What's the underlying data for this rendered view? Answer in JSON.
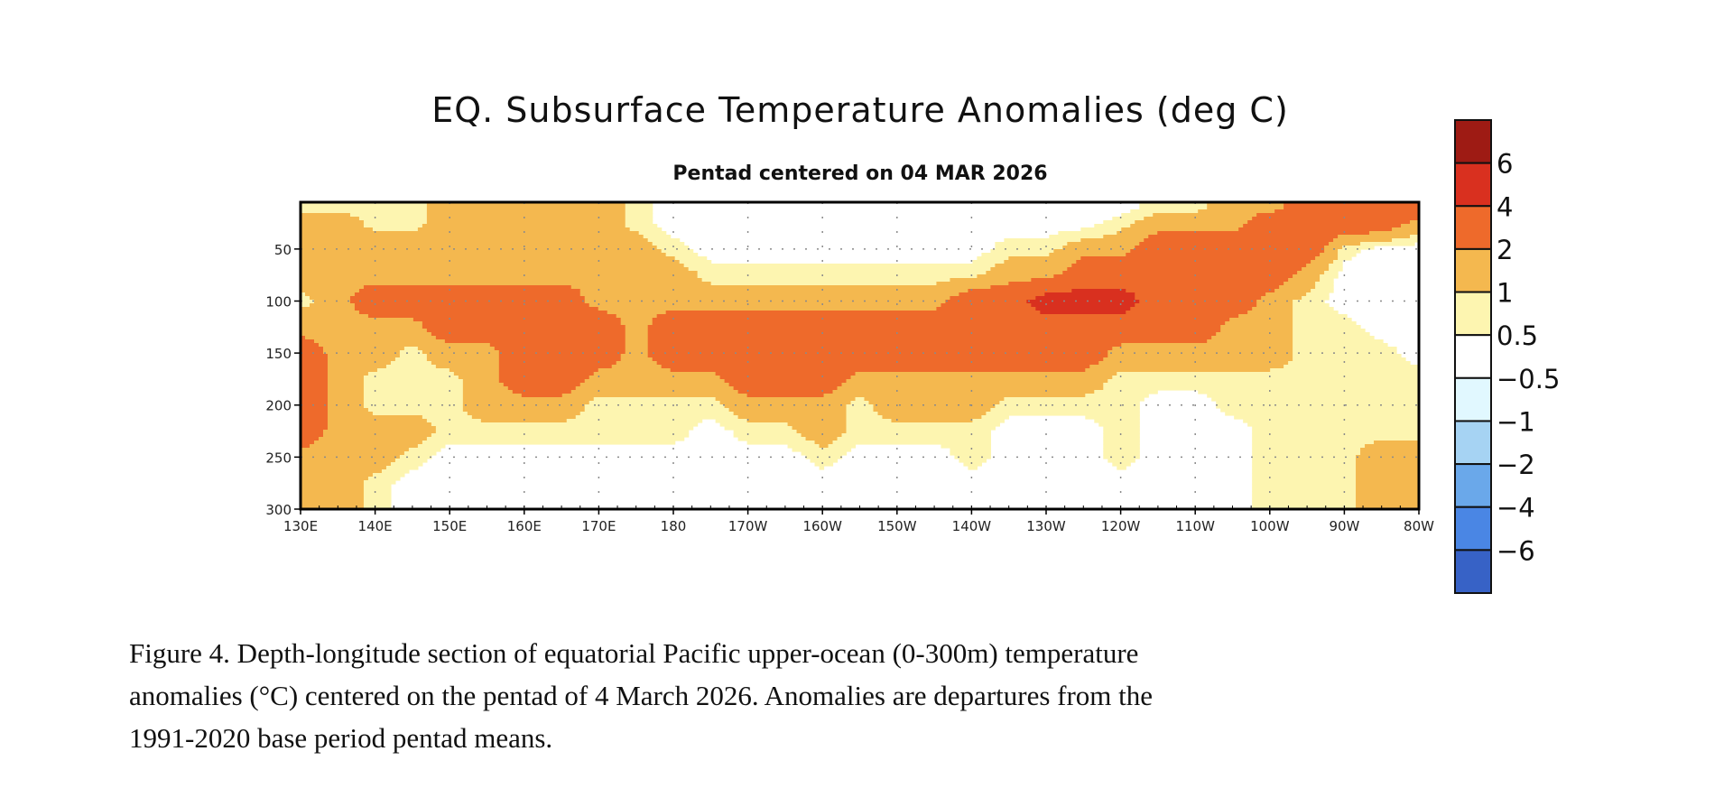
{
  "chart_data": {
    "type": "heatmap",
    "title": "EQ. Subsurface Temperature Anomalies (deg C)",
    "subtitle": "Pentad centered on 04 MAR 2026",
    "xlabel": "",
    "ylabel": "",
    "xlim": [
      130,
      280
    ],
    "ylim": [
      5,
      300
    ],
    "y_reversed": true,
    "grid": true,
    "x_ticks": [
      130,
      140,
      150,
      160,
      170,
      180,
      190,
      200,
      210,
      220,
      230,
      240,
      250,
      260,
      270,
      280
    ],
    "x_tick_labels": [
      "130E",
      "140E",
      "150E",
      "160E",
      "170E",
      "180",
      "170W",
      "160W",
      "150W",
      "140W",
      "130W",
      "120W",
      "110W",
      "100W",
      "90W",
      "80W"
    ],
    "y_ticks": [
      50,
      100,
      150,
      200,
      250,
      300
    ],
    "y_tick_labels": [
      "50",
      "100",
      "150",
      "200",
      "250",
      "300"
    ],
    "colorbar": {
      "levels": [
        6,
        4,
        2,
        1,
        0.5,
        -0.5,
        -1,
        -2,
        -4,
        -6
      ],
      "labels": [
        "6",
        "4",
        "2",
        "1",
        "0.5",
        "−0.5",
        "−1",
        "−2",
        "−4",
        "−6"
      ],
      "colors": [
        "#9e1b14",
        "#d9301f",
        "#ee6a2b",
        "#f4b84f",
        "#fdf5b0",
        "#ffffff",
        "#e1f8ff",
        "#a6d3f3",
        "#6aa8ea",
        "#4a86e4",
        "#3762c6"
      ]
    },
    "lon": [
      130,
      135,
      140,
      145,
      150,
      155,
      160,
      165,
      170,
      175,
      180,
      185,
      190,
      195,
      200,
      205,
      210,
      215,
      220,
      225,
      230,
      235,
      240,
      245,
      250,
      255,
      260,
      265,
      270,
      275,
      280
    ],
    "depth": [
      10,
      25,
      50,
      75,
      100,
      125,
      150,
      175,
      200,
      225,
      250,
      275,
      300
    ],
    "values": [
      [
        0.75,
        1.5,
        1.5,
        1.5,
        0.75,
        1.5,
        3,
        3,
        3,
        3,
        1.5,
        1.5,
        1.5
      ],
      [
        0.75,
        1.5,
        1.5,
        1.5,
        1.5,
        1.5,
        1.5,
        1.5,
        1.5,
        1.5,
        1.5,
        1.5,
        1.5
      ],
      [
        0.75,
        0.75,
        1.5,
        1.5,
        3,
        1.5,
        1.5,
        0.75,
        0.75,
        1.5,
        1.5,
        0.75,
        0.75
      ],
      [
        0.75,
        0.75,
        1.5,
        1.5,
        3,
        1.5,
        0.75,
        0.75,
        0.75,
        1.5,
        0.75,
        0.2,
        0.2
      ],
      [
        1.5,
        1.5,
        1.5,
        1.5,
        3,
        3,
        1.5,
        0.75,
        0.75,
        0.75,
        0.2,
        0.2,
        0.2
      ],
      [
        1.5,
        1.5,
        1.5,
        1.5,
        3,
        3,
        1.5,
        1.5,
        1.5,
        0.75,
        0.2,
        0.2,
        0.2
      ],
      [
        1.5,
        1.5,
        1.5,
        1.5,
        3,
        3,
        3,
        3,
        1.5,
        0.75,
        0.2,
        0.2,
        0.2
      ],
      [
        1.5,
        1.5,
        1.5,
        1.5,
        3,
        3,
        3,
        3,
        1.5,
        0.75,
        0.2,
        0.2,
        0.2
      ],
      [
        1.5,
        1.5,
        1.5,
        1.5,
        1.5,
        3,
        3,
        1.5,
        0.75,
        0.75,
        0.2,
        0.2,
        0.2
      ],
      [
        0.75,
        0.75,
        1.5,
        1.5,
        1.5,
        1.5,
        1.5,
        1.5,
        0.75,
        0.75,
        0.2,
        0.2,
        0.2
      ],
      [
        0.2,
        0.2,
        0.75,
        1.5,
        1.5,
        3,
        3,
        1.5,
        0.75,
        0.75,
        0.2,
        0.2,
        0.2
      ],
      [
        0.2,
        0.2,
        0.2,
        0.75,
        1.5,
        3,
        3,
        1.5,
        0.75,
        0.2,
        0.2,
        0.2,
        0.2
      ],
      [
        0.2,
        0.2,
        0.2,
        0.75,
        1.5,
        3,
        3,
        3,
        1.5,
        0.75,
        0.2,
        0.2,
        0.2
      ],
      [
        0.2,
        0.2,
        0.2,
        0.75,
        1.5,
        3,
        3,
        3,
        1.5,
        0.75,
        0.2,
        0.2,
        0.2
      ],
      [
        0.2,
        0.2,
        0.2,
        0.75,
        1.5,
        3,
        3,
        3,
        1.5,
        1.5,
        0.75,
        0.2,
        0.2
      ],
      [
        0.2,
        0.2,
        0.2,
        0.75,
        1.5,
        3,
        3,
        1.5,
        0.75,
        0.75,
        0.2,
        0.2,
        0.2
      ],
      [
        0.2,
        0.2,
        0.2,
        0.75,
        1.5,
        3,
        3,
        1.5,
        1.5,
        0.75,
        0.2,
        0.2,
        0.2
      ],
      [
        0.2,
        0.2,
        0.2,
        0.75,
        1.5,
        3,
        3,
        1.5,
        1.5,
        0.75,
        0.2,
        0.2,
        0.2
      ],
      [
        0.2,
        0.2,
        0.2,
        0.75,
        3,
        3,
        3,
        1.5,
        1.5,
        0.75,
        0.75,
        0.2,
        0.2
      ],
      [
        0.2,
        0.2,
        0.75,
        1.5,
        3,
        3,
        3,
        1.5,
        0.75,
        0.2,
        0.2,
        0.2,
        0.2
      ],
      [
        0.2,
        0.2,
        0.75,
        1.5,
        5,
        3,
        3,
        1.5,
        0.75,
        0.2,
        0.2,
        0.2,
        0.2
      ],
      [
        0.2,
        0.2,
        1.5,
        3,
        5,
        3,
        3,
        1.5,
        0.75,
        0.2,
        0.2,
        0.2,
        0.2
      ],
      [
        0.2,
        0.75,
        1.5,
        3,
        5,
        3,
        1.5,
        0.75,
        0.75,
        0.75,
        0.75,
        0.2,
        0.2
      ],
      [
        0.75,
        1.5,
        3,
        3,
        3,
        3,
        1.5,
        0.75,
        0.2,
        0.2,
        0.2,
        0.2,
        0.2
      ],
      [
        0.75,
        1.5,
        3,
        3,
        3,
        3,
        1.5,
        0.75,
        0.2,
        0.2,
        0.2,
        0.2,
        0.2
      ],
      [
        1.5,
        1.5,
        3,
        3,
        3,
        1.5,
        1.5,
        0.75,
        0.75,
        0.2,
        0.2,
        0.2,
        0.2
      ],
      [
        1.5,
        3,
        3,
        3,
        1.5,
        1.5,
        1.5,
        0.75,
        0.75,
        0.75,
        0.75,
        0.75,
        0.75
      ],
      [
        3,
        3,
        3,
        1.5,
        0.75,
        0.75,
        0.75,
        0.75,
        0.75,
        0.75,
        0.75,
        0.75,
        0.75
      ],
      [
        3,
        3,
        0.75,
        0.2,
        0.2,
        0.75,
        0.75,
        0.75,
        0.75,
        0.75,
        0.75,
        0.75,
        0.75
      ],
      [
        3,
        3,
        0.2,
        0.2,
        0.2,
        0.2,
        0.75,
        0.75,
        0.75,
        0.75,
        1.5,
        1.5,
        1.5
      ],
      [
        3,
        1.5,
        0.2,
        0.2,
        0.2,
        0.2,
        0.2,
        0.75,
        0.75,
        0.75,
        1.5,
        1.5,
        1.5
      ]
    ]
  },
  "caption": {
    "lines": [
      "Figure 4. Depth-longitude section of equatorial Pacific upper-ocean (0-300m) temperature",
      "anomalies (°C) centered on the pentad of 4 March 2026. Anomalies are departures from the",
      "1991-2020 base period pentad means."
    ]
  }
}
